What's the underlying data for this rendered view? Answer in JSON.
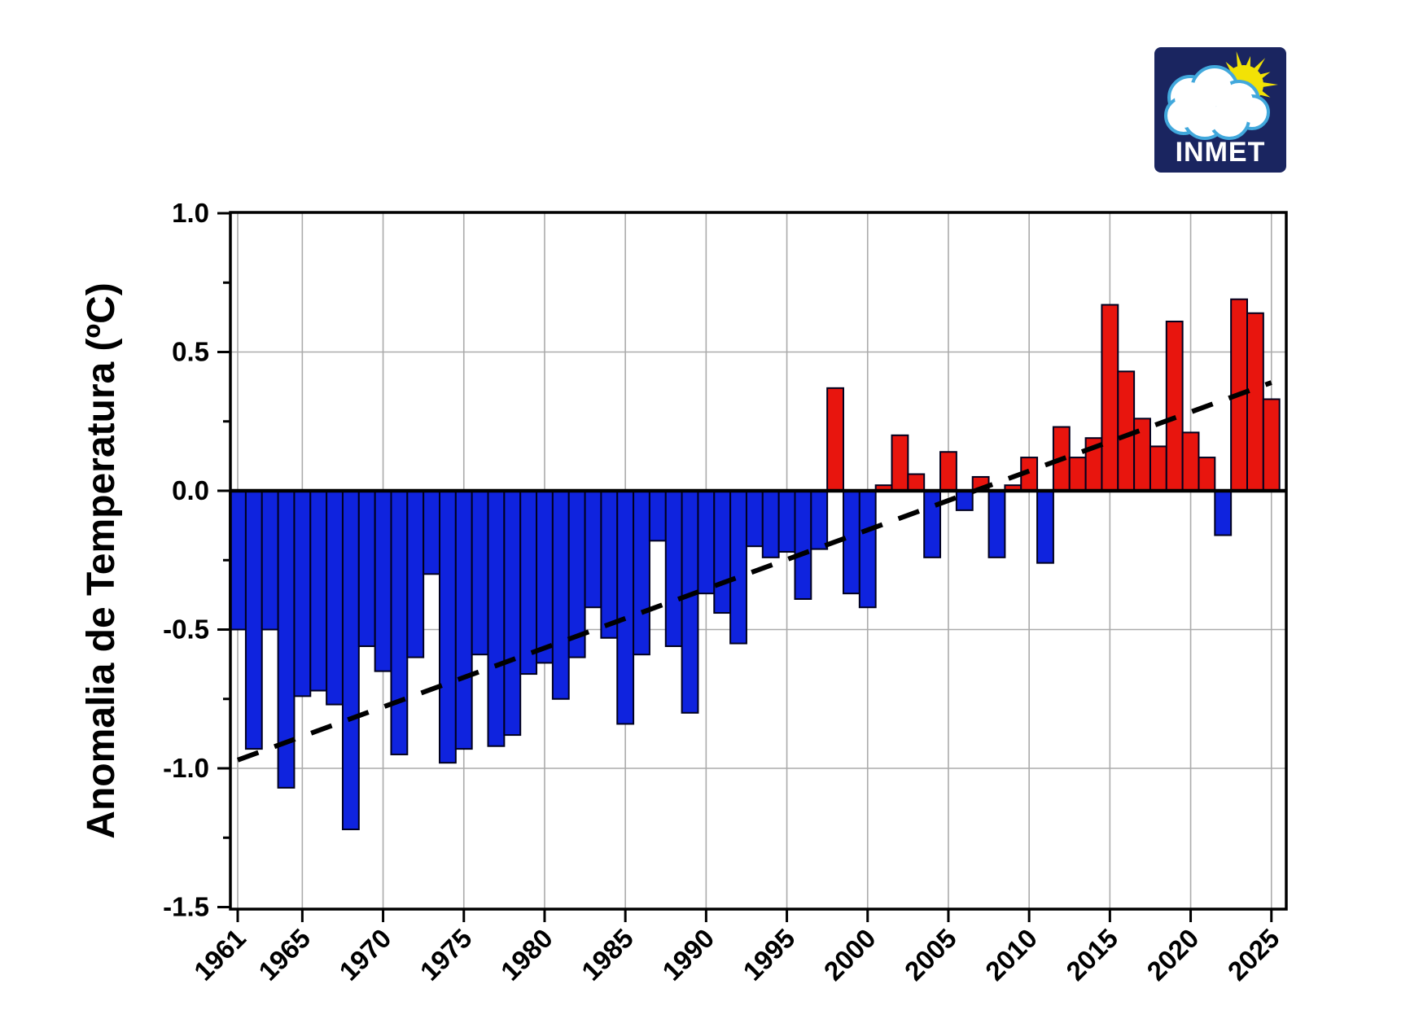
{
  "logo": {
    "text": "INMET",
    "bg_color": "#1a2560",
    "sun_color": "#f2e205",
    "cloud_fill": "#ffffff",
    "cloud_outline": "#41a8dc",
    "text_color": "#ffffff"
  },
  "chart_data": {
    "type": "bar",
    "title": "",
    "xlabel": "",
    "ylabel": "Anomalia de Temperatura (ºC)",
    "ylim": [
      -1.5,
      1.0
    ],
    "grid": true,
    "legend": "none",
    "y_tick_labels": [
      "1.0",
      "0.5",
      "0.0",
      "-0.5",
      "-1.0",
      "-1.5"
    ],
    "y_tick_values": [
      1.0,
      0.5,
      0.0,
      -0.5,
      -1.0,
      -1.5
    ],
    "y_minor_step": 0.25,
    "y_gridline_values": [
      0.5,
      -0.5,
      -1.0
    ],
    "x_tick_years": [
      1961,
      1965,
      1970,
      1975,
      1980,
      1985,
      1990,
      1995,
      2000,
      2005,
      2010,
      2015,
      2020,
      2025
    ],
    "years": [
      1961,
      1962,
      1963,
      1964,
      1965,
      1966,
      1967,
      1968,
      1969,
      1970,
      1971,
      1972,
      1973,
      1974,
      1975,
      1976,
      1977,
      1978,
      1979,
      1980,
      1981,
      1982,
      1983,
      1984,
      1985,
      1986,
      1987,
      1988,
      1989,
      1990,
      1991,
      1992,
      1993,
      1994,
      1995,
      1996,
      1997,
      1998,
      1999,
      2000,
      2001,
      2002,
      2003,
      2004,
      2005,
      2006,
      2007,
      2008,
      2009,
      2010,
      2011,
      2012,
      2013,
      2014,
      2015,
      2016,
      2017,
      2018,
      2019,
      2020,
      2021,
      2022,
      2023,
      2024,
      2025
    ],
    "values": [
      -0.5,
      -0.93,
      -0.5,
      -1.07,
      -0.74,
      -0.72,
      -0.77,
      -1.22,
      -0.56,
      -0.65,
      -0.95,
      -0.6,
      -0.3,
      -0.98,
      -0.93,
      -0.59,
      -0.92,
      -0.88,
      -0.66,
      -0.62,
      -0.75,
      -0.6,
      -0.42,
      -0.53,
      -0.84,
      -0.59,
      -0.18,
      -0.56,
      -0.8,
      -0.37,
      -0.44,
      -0.55,
      -0.2,
      -0.24,
      -0.22,
      -0.39,
      -0.21,
      0.37,
      -0.37,
      -0.42,
      0.02,
      0.2,
      0.06,
      -0.24,
      0.14,
      -0.07,
      0.05,
      -0.24,
      0.02,
      0.12,
      -0.26,
      0.23,
      0.12,
      0.19,
      0.67,
      0.43,
      0.26,
      0.16,
      0.61,
      0.21,
      0.12,
      -0.16,
      0.69,
      0.64,
      0.33
    ],
    "trend_line": {
      "style": "dashed",
      "start_year": 1961,
      "start_value": -0.97,
      "end_year": 2025,
      "end_value": 0.39
    },
    "colors": {
      "positive_bar": "#e8150e",
      "negative_bar": "#0f23de",
      "bar_outline": "#00001e",
      "grid": "#ababab",
      "axis": "#000000",
      "trend": "#000000",
      "background": "#ffffff"
    }
  }
}
